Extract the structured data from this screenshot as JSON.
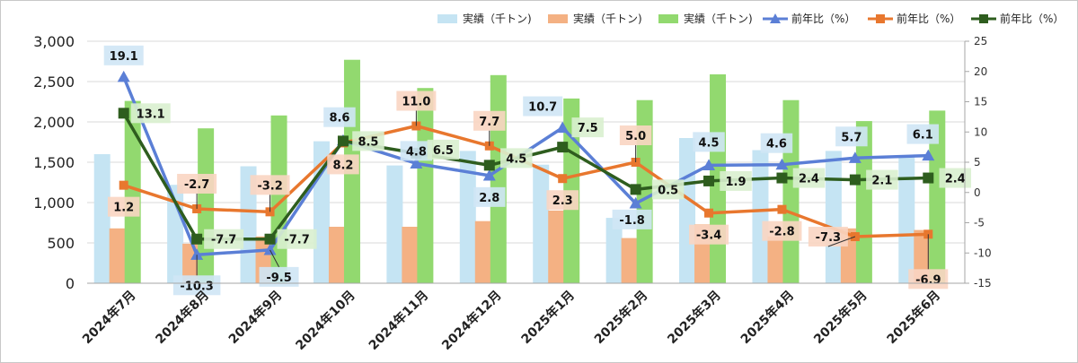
{
  "chart_data": {
    "type": "bar",
    "categories": [
      "2024年7月",
      "2024年8月",
      "2024年9月",
      "2024年10月",
      "2024年11月",
      "2024年12月",
      "2025年1月",
      "2025年2月",
      "2025年3月",
      "2025年4月",
      "2025年5月",
      "2025年6月"
    ],
    "bar_series": [
      {
        "name": "実績（千トン)",
        "color": "#c5e4f3",
        "values": [
          1600,
          1220,
          1450,
          1760,
          1460,
          1640,
          1470,
          810,
          1800,
          1650,
          1640,
          1580
        ]
      },
      {
        "name": "実績（千トン)",
        "color": "#f4b183",
        "values": [
          680,
          490,
          580,
          700,
          700,
          770,
          900,
          560,
          730,
          580,
          680,
          660
        ]
      },
      {
        "name": "実績（千トン)",
        "color": "#92d96f",
        "values": [
          2260,
          1920,
          2080,
          2770,
          2420,
          2580,
          2290,
          2270,
          2590,
          2270,
          2010,
          2140
        ]
      }
    ],
    "line_series": [
      {
        "name": "前年比（%）",
        "color": "#5b7fd6",
        "marker": "triangle",
        "values": [
          19.1,
          -10.3,
          -9.5,
          8.6,
          4.8,
          2.8,
          10.7,
          -1.8,
          4.5,
          4.6,
          5.7,
          6.1
        ],
        "label_bg": "#cfe6f5"
      },
      {
        "name": "前年比（%）",
        "color": "#e8772e",
        "marker": "square",
        "values": [
          1.2,
          -2.7,
          -3.2,
          8.2,
          11.0,
          7.7,
          2.3,
          5.0,
          -3.4,
          -2.8,
          -7.3,
          -6.9
        ],
        "label_bg": "#f9d5c2"
      },
      {
        "name": "前年比（%）",
        "color": "#2e5d1e",
        "marker": "square",
        "values": [
          13.1,
          -7.7,
          -7.7,
          8.5,
          6.5,
          4.5,
          7.5,
          0.5,
          1.9,
          2.4,
          2.1,
          2.4
        ],
        "label_bg": "#d9f0cf"
      }
    ],
    "y_left": {
      "min": 0,
      "max": 3000,
      "step": 500,
      "ticks": [
        "0",
        "500",
        "1,000",
        "1,500",
        "2,000",
        "2,500",
        "3,000"
      ]
    },
    "y_right": {
      "min": -15,
      "max": 25,
      "step": 5,
      "ticks": [
        "-15",
        "-10",
        "-5",
        "0",
        "5",
        "10",
        "15",
        "20",
        "25"
      ]
    },
    "legend_position": "top-right",
    "grid": true
  }
}
